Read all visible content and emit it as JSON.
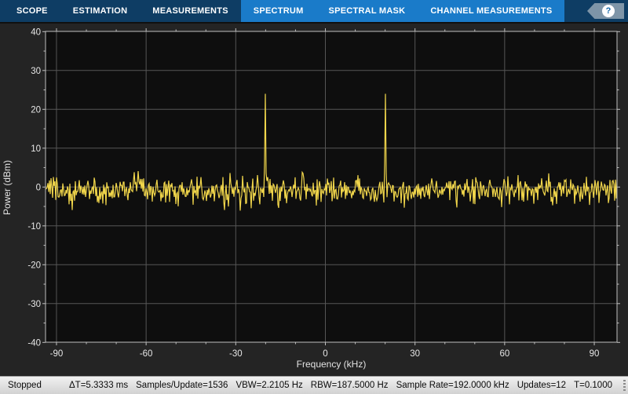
{
  "toolbar": {
    "tabs": [
      {
        "label": "SCOPE",
        "active": false
      },
      {
        "label": "ESTIMATION",
        "active": false
      },
      {
        "label": "MEASUREMENTS",
        "active": false
      },
      {
        "label": "SPECTRUM",
        "active": true
      },
      {
        "label": "SPECTRAL MASK",
        "active": true
      },
      {
        "label": "CHANNEL MEASUREMENTS",
        "active": true
      }
    ],
    "help_label": "?"
  },
  "chart": {
    "xlabel": "Frequency (kHz)",
    "ylabel": "Power (dBm)"
  },
  "chart_data": {
    "type": "line",
    "xlabel": "Frequency (kHz)",
    "ylabel": "Power (dBm)",
    "xlim": [
      -94,
      97
    ],
    "ylim": [
      -40,
      40
    ],
    "x_ticks": [
      -90,
      -60,
      -30,
      0,
      30,
      60,
      90
    ],
    "y_ticks": [
      40,
      30,
      20,
      10,
      0,
      -10,
      -20,
      -30,
      -40
    ],
    "x_minor_step_khz": 10,
    "y_minor_step_db": 5,
    "grid": true,
    "noise_floor_dbm": 0,
    "noise_peak_to_peak_db": 8,
    "peaks": [
      {
        "frequency_khz": -20,
        "power_dbm": 24
      },
      {
        "frequency_khz": 20,
        "power_dbm": 24
      }
    ],
    "trace_color": "#f1d64b"
  },
  "colors": {
    "toolbar_bg": "#0e3d64",
    "toolbar_active_bg": "#1a7bc9",
    "plot_surround": "#242424",
    "plot_bg": "#0e0e0e",
    "grid": "#565656",
    "frame": "#bfbfbf",
    "tick_label": "#e6e6e6",
    "trace": "#f1d64b",
    "status_bg": "#d9d9d9"
  },
  "statusbar": {
    "state": "Stopped",
    "items": [
      "ΔT=5.3333 ms",
      "Samples/Update=1536",
      "VBW=2.2105 Hz",
      "RBW=187.5000 Hz",
      "Sample Rate=192.0000 kHz",
      "Updates=12",
      "T=0.1000"
    ]
  }
}
